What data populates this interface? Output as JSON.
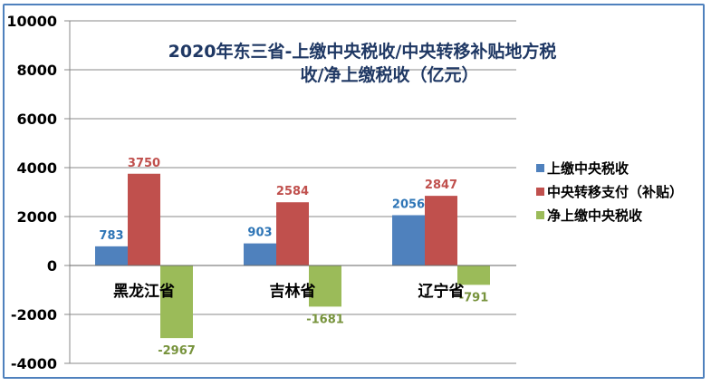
{
  "chart_data": {
    "type": "bar",
    "title": "2020年东三省-上缴中央税收/中央转移补贴地方税收/净上缴税收（亿元）",
    "title_lines": [
      "2020年东三省-上缴中央税收/中央转移补贴地方税",
      "收/净上缴税收（亿元）"
    ],
    "categories": [
      "黑龙江省",
      "吉林省",
      "辽宁省"
    ],
    "series": [
      {
        "name": "上缴中央税收",
        "color": "#4f81bd",
        "label_color": "#2e75b6",
        "values": [
          783,
          903,
          2056
        ]
      },
      {
        "name": "中央转移支付（补贴）",
        "color": "#c0504d",
        "label_color": "#c0504d",
        "values": [
          3750,
          2584,
          2847
        ]
      },
      {
        "name": "净上缴中央税收",
        "color": "#9bbb59",
        "label_color": "#77933c",
        "values": [
          -2967,
          -1681,
          -791
        ]
      }
    ],
    "ylim": [
      -4000,
      10000
    ],
    "yticks": [
      -4000,
      -2000,
      0,
      2000,
      4000,
      6000,
      8000,
      10000
    ],
    "grid": true,
    "legend": "right"
  }
}
